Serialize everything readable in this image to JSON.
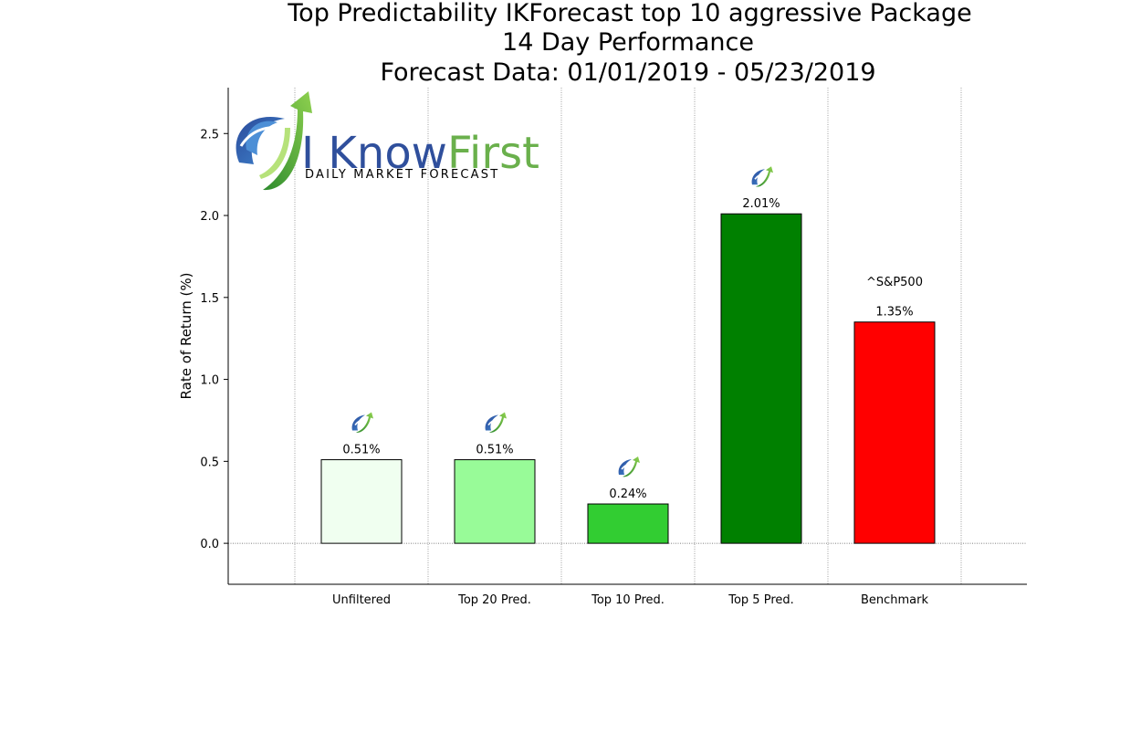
{
  "chart_data": {
    "type": "bar",
    "title": [
      "Top Predictability IKForecast top 10 aggressive Package",
      "14 Day Performance",
      "Forecast Data: 01/01/2019 - 05/23/2019"
    ],
    "xlabel": "",
    "ylabel": "Rate of Return (%)",
    "categories": [
      "Unfiltered",
      "Top 20 Pred.",
      "Top 10 Pred.",
      "Top 5 Pred.",
      "Benchmark"
    ],
    "values": [
      0.51,
      0.51,
      0.24,
      2.01,
      1.35
    ],
    "value_labels": [
      "0.51%",
      "0.51%",
      "0.24%",
      "2.01%",
      "1.35%"
    ],
    "bar_colors": [
      "#f0fff0",
      "#98fb98",
      "#32cd32",
      "#008000",
      "#ff0000"
    ],
    "bar_has_logo": [
      true,
      true,
      true,
      true,
      false
    ],
    "ylim": [
      -0.25,
      2.78
    ],
    "yticks": [
      0.0,
      0.5,
      1.0,
      1.5,
      2.0,
      2.5
    ],
    "ytick_labels": [
      "0.0",
      "0.5",
      "1.0",
      "1.5",
      "2.0",
      "2.5"
    ],
    "grid": "vertical dotted lines between categories",
    "annotations": [
      {
        "text": "^S&P500",
        "category": "Benchmark",
        "y": 1.6
      }
    ],
    "watermark": {
      "main_left": "I Know",
      "main_right": "First",
      "subtitle": "DAILY MARKET FORECAST",
      "placement": "top-left"
    }
  }
}
